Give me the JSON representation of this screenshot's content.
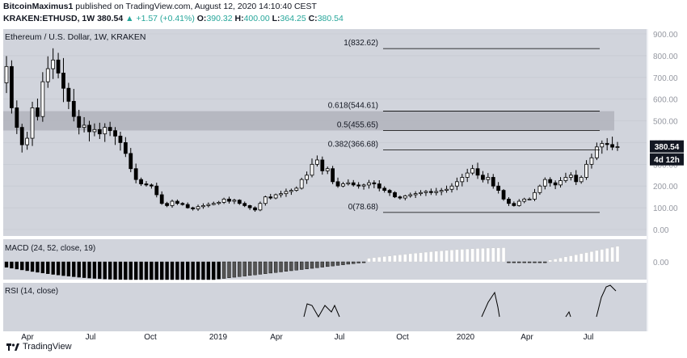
{
  "header": {
    "author": "BitcoinMaximus1",
    "published_text": "published on TradingView.com, August 12, 2020 14:10:40 CEST",
    "symbol": "KRAKEN:ETHUSD, 1W",
    "last": "380.54",
    "change": "▲ +1.57 (+0.41%)",
    "open_label": "O:",
    "open": "390.32",
    "high_label": "H:",
    "high": "400.00",
    "low_label": "L:",
    "low": "364.25",
    "close_label": "C:",
    "close": "380.54"
  },
  "brand": {
    "name": "TradingView"
  },
  "colors": {
    "bg": "#ffffff",
    "pane": "#d1d4dc",
    "candle": "#000000",
    "fib": "#000000",
    "zone": "#b2b5be"
  },
  "chart_data": [
    {
      "type": "candlestick",
      "title": "Ethereum / U.S. Dollar, 1W, KRAKEN",
      "y_axis_ticks": [
        "900.00",
        "800.00",
        "700.00",
        "600.00",
        "500.00",
        "400.00",
        "300.00",
        "200.00",
        "100.00",
        "0.00"
      ],
      "ylim": [
        0,
        900
      ],
      "x_tick_labels": [
        "Apr",
        "Jul",
        "Oct",
        "2019",
        "Apr",
        "Jul",
        "Oct",
        "2020",
        "Apr",
        "Jul"
      ],
      "last_price_label": "380.54",
      "countdown_label": "4d 12h",
      "fib_levels": [
        {
          "label": "1(832.62)",
          "value": 832.62
        },
        {
          "label": "0.618(544.61)",
          "value": 544.61
        },
        {
          "label": "0.5(455.65)",
          "value": 455.65
        },
        {
          "label": "0.382(366.68)",
          "value": 366.68
        },
        {
          "label": "0(78.68)",
          "value": 78.68
        }
      ],
      "resistance_zone": [
        455.65,
        544.61
      ],
      "closes": [
        750,
        560,
        470,
        390,
        420,
        560,
        520,
        680,
        740,
        780,
        720,
        650,
        590,
        520,
        470,
        480,
        450,
        460,
        440,
        470,
        455,
        430,
        400,
        350,
        280,
        230,
        210,
        205,
        200,
        160,
        120,
        110,
        130,
        120,
        115,
        100,
        95,
        105,
        110,
        115,
        120,
        125,
        140,
        130,
        135,
        120,
        110,
        100,
        90,
        120,
        150,
        145,
        160,
        165,
        175,
        180,
        190,
        230,
        250,
        300,
        320,
        270,
        280,
        220,
        200,
        210,
        215,
        205,
        200,
        205,
        215,
        210,
        190,
        180,
        170,
        150,
        145,
        155,
        160,
        165,
        170,
        175,
        170,
        175,
        180,
        185,
        200,
        220,
        240,
        260,
        280,
        250,
        230,
        240,
        200,
        180,
        140,
        120,
        110,
        130,
        140,
        140,
        170,
        200,
        230,
        215,
        205,
        225,
        240,
        250,
        220,
        240,
        300,
        330,
        380,
        396,
        391,
        379,
        381
      ],
      "highs_sample_peak": 880
    },
    {
      "type": "bar",
      "title": "MACD (24, 52, close, 19)",
      "y_axis_ticks": [
        "0.00"
      ]
    },
    {
      "type": "line",
      "title": "RSI (14, close)"
    }
  ]
}
